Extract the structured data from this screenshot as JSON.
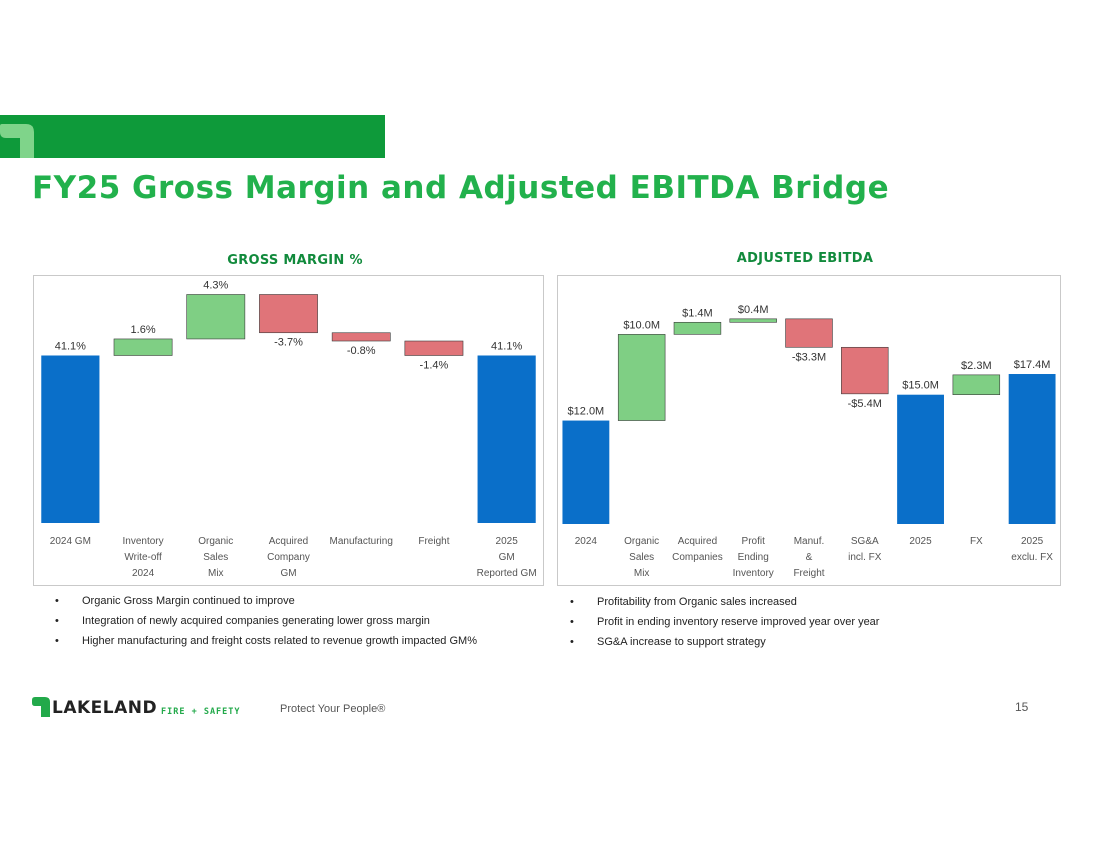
{
  "slide": {
    "title": "FY25 Gross Margin and Adjusted EBITDA Bridge",
    "page_number": "15",
    "brand": {
      "name": "LAKELAND",
      "sub": "FIRE + SAFETY",
      "tagline": "Protect Your People®"
    },
    "colors": {
      "accent_green": "#0e9a3a",
      "title_green": "#22b14c",
      "bar_blue": "#0a6fc9",
      "increase_green": "#7fcf84",
      "decrease_red": "#e07479"
    }
  },
  "gm": {
    "heading": "GROSS MARGIN %",
    "bullets": [
      "Organic Gross Margin continued to improve",
      "Integration of newly acquired companies generating lower gross margin",
      "Higher manufacturing and freight costs  related to revenue growth impacted GM%"
    ]
  },
  "ebitda": {
    "heading": "ADJUSTED EBITDA",
    "bullets": [
      "Profitability from Organic sales increased",
      "Profit in ending inventory reserve improved year over year",
      "SG&A increase to support strategy"
    ]
  },
  "chart_data": [
    {
      "type": "bar",
      "subtype": "waterfall",
      "title": "GROSS MARGIN %",
      "unit": "%",
      "categories": [
        [
          "2024 GM"
        ],
        [
          "Inventory",
          "Write-off",
          "2024"
        ],
        [
          "Organic",
          "Sales",
          "Mix"
        ],
        [
          "Acquired",
          "Company",
          "GM"
        ],
        [
          "Manufacturing"
        ],
        [
          "Freight"
        ],
        [
          "2025",
          "GM",
          "Reported GM"
        ]
      ],
      "values": [
        41.1,
        1.6,
        4.3,
        -3.7,
        -0.8,
        -1.4,
        41.1
      ],
      "kinds": [
        "total",
        "delta",
        "delta",
        "delta",
        "delta",
        "delta",
        "total"
      ],
      "labels": [
        "41.1%",
        "1.6%",
        "4.3%",
        "-3.7%",
        "-0.8%",
        "-1.4%",
        "41.1%"
      ]
    },
    {
      "type": "bar",
      "subtype": "waterfall",
      "title": "ADJUSTED EBITDA",
      "unit": "$M",
      "categories": [
        [
          "2024"
        ],
        [
          "Organic",
          "Sales",
          "Mix"
        ],
        [
          "Acquired",
          "Companies"
        ],
        [
          "Profit",
          "Ending",
          "Inventory"
        ],
        [
          "Manuf.",
          "&",
          "Freight"
        ],
        [
          "SG&A",
          "incl. FX"
        ],
        [
          "2025"
        ],
        [
          "FX"
        ],
        [
          "2025",
          "exclu. FX"
        ]
      ],
      "values": [
        12.0,
        10.0,
        1.4,
        0.4,
        -3.3,
        -5.4,
        15.0,
        2.3,
        17.4
      ],
      "kinds": [
        "total",
        "delta",
        "delta",
        "delta",
        "delta",
        "delta",
        "total",
        "delta",
        "total"
      ],
      "labels": [
        "$12.0M",
        "$10.0M",
        "$1.4M",
        "$0.4M",
        "-$3.3M",
        "-$5.4M",
        "$15.0M",
        "$2.3M",
        "$17.4M"
      ]
    }
  ]
}
